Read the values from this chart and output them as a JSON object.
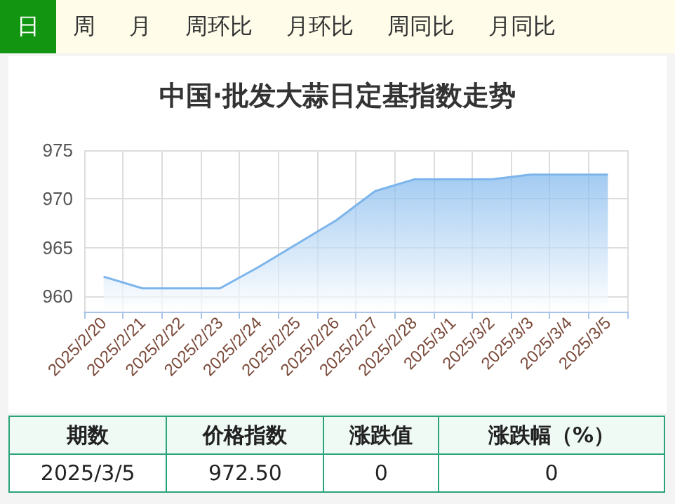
{
  "chart_data": {
    "type": "area",
    "title": "中国·批发大蒜日定基指数走势",
    "categories": [
      "2025/2/20",
      "2025/2/21",
      "2025/2/22",
      "2025/2/23",
      "2025/2/24",
      "2025/2/25",
      "2025/2/26",
      "2025/2/27",
      "2025/2/28",
      "2025/3/1",
      "2025/3/2",
      "2025/3/3",
      "2025/3/4",
      "2025/3/5"
    ],
    "series": [
      {
        "color": "#7cb5ec",
        "values": [
          962.0,
          960.8,
          960.8,
          960.8,
          963.0,
          965.4,
          967.8,
          970.8,
          972.0,
          972.0,
          972.0,
          972.5,
          972.5,
          972.5
        ]
      }
    ],
    "ylim": [
      958.4,
      975
    ],
    "yticks": [
      960,
      965,
      970,
      975
    ],
    "grid": true,
    "marker": "none",
    "annotations": [
      "日",
      "周",
      "月",
      "周环比",
      "月环比",
      "周同比",
      "月同比",
      "期数",
      "价格指数",
      "涨跌值",
      "涨跌幅（%）",
      "2025/3/5",
      "972.50",
      "0",
      "0"
    ]
  }
}
